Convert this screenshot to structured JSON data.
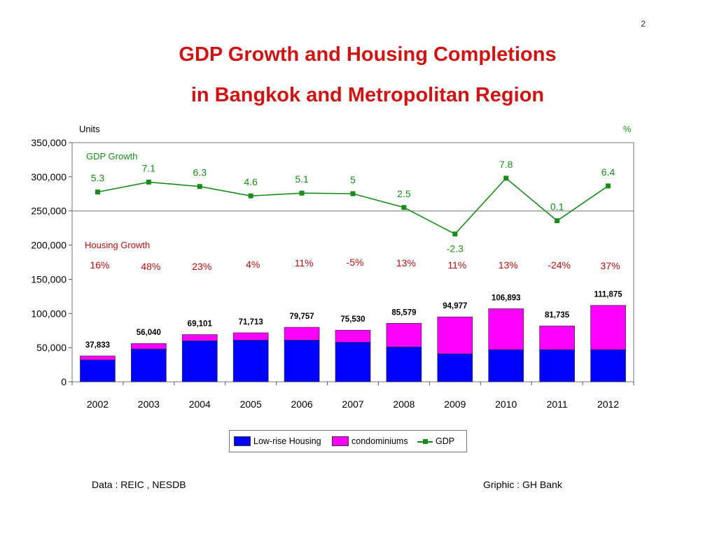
{
  "slide_number": "2",
  "title": {
    "line1": "GDP Growth and Housing Completions",
    "line2": "in Bangkok and Metropolitan Region"
  },
  "chart_data": {
    "type": "bar",
    "categories": [
      "2002",
      "2003",
      "2004",
      "2005",
      "2006",
      "2007",
      "2008",
      "2009",
      "2010",
      "2011",
      "2012"
    ],
    "left_axis_unit": "Units",
    "right_axis_unit": "%",
    "y_ticks": [
      "350,000",
      "300,000",
      "250,000",
      "200,000",
      "150,000",
      "100,000",
      "50,000",
      "0"
    ],
    "ylim": [
      0,
      350000
    ],
    "stacked": true,
    "series": [
      {
        "name": "Low-rise Housing",
        "color": "#0000ff",
        "values": [
          32000,
          48000,
          60000,
          61000,
          61000,
          58000,
          51000,
          41000,
          47000,
          47000,
          47000
        ]
      },
      {
        "name": "condominiums",
        "color": "#ff00ff",
        "values": [
          5833,
          8040,
          9101,
          10713,
          18757,
          17530,
          34579,
          53977,
          59893,
          34735,
          64875
        ]
      }
    ],
    "totals_labels": [
      "37,833",
      "56,040",
      "69,101",
      "71,713",
      "79,757",
      "75,530",
      "85,579",
      "94,977",
      "106,893",
      "81,735",
      "111,875"
    ],
    "gdp": {
      "name": "GDP",
      "color": "#1a8a1a",
      "section_label": "GDP Growth",
      "values": [
        5.3,
        7.1,
        6.3,
        4.6,
        5.1,
        5,
        2.5,
        -2.3,
        7.8,
        0.1,
        6.4
      ],
      "labels": [
        "5.3",
        "7.1",
        "6.3",
        "4.6",
        "5.1",
        "5",
        "2.5",
        "-2.3",
        "7.8",
        "0.1",
        "6.4"
      ]
    },
    "housing_growth": {
      "section_label": "Housing Growth",
      "color": "#b01010",
      "labels": [
        "16%",
        "48%",
        "23%",
        "4%",
        "11%",
        "-5%",
        "13%",
        "11%",
        "13%",
        "-24%",
        "37%"
      ]
    },
    "grid": false,
    "legend": "bottom"
  },
  "legend": {
    "low_rise": "Low-rise Housing",
    "condo": "condominiums",
    "gdp": "GDP"
  },
  "footer": {
    "source": "Data : REIC , NESDB",
    "credit": "Griphic : GH Bank"
  }
}
